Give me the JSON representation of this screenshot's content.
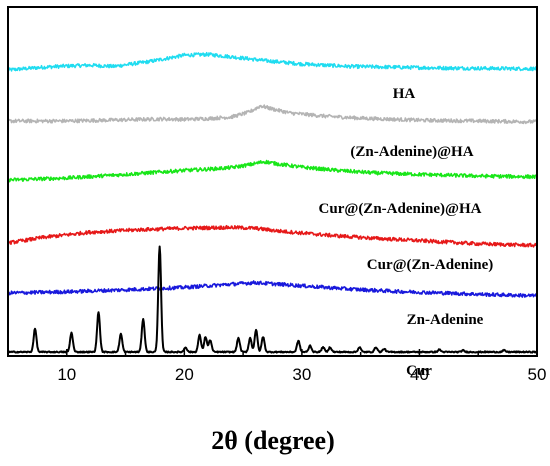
{
  "chart_data": {
    "type": "line",
    "xlabel": "2θ (degree)",
    "ylabel": "",
    "xlim": [
      5,
      50
    ],
    "x_ticks": [
      10,
      20,
      30,
      40,
      50
    ],
    "y_ticks_shown": false,
    "grid": false,
    "legend": "none",
    "series": [
      {
        "name": "HA",
        "color": "#20dcf0",
        "offset": 5,
        "points": [
          [
            5,
            0.05
          ],
          [
            8,
            0.12
          ],
          [
            10,
            0.15
          ],
          [
            12,
            0.17
          ],
          [
            14,
            0.14
          ],
          [
            17,
            0.26
          ],
          [
            20,
            0.42
          ],
          [
            22,
            0.44
          ],
          [
            24,
            0.38
          ],
          [
            27,
            0.28
          ],
          [
            30,
            0.2
          ],
          [
            34,
            0.14
          ],
          [
            38,
            0.12
          ],
          [
            42,
            0.1
          ],
          [
            46,
            0.09
          ],
          [
            50,
            0.08
          ]
        ]
      },
      {
        "name": "(Zn-Adenine)@HA",
        "color": "#b4b4b4",
        "offset": 4,
        "points": [
          [
            5,
            0.0
          ],
          [
            10,
            0.0
          ],
          [
            15,
            0.03
          ],
          [
            18,
            0.05
          ],
          [
            20,
            0.04
          ],
          [
            22,
            0.06
          ],
          [
            24,
            0.1
          ],
          [
            25.5,
            0.22
          ],
          [
            26.5,
            0.38
          ],
          [
            27.5,
            0.3
          ],
          [
            29,
            0.2
          ],
          [
            32,
            0.12
          ],
          [
            35,
            0.07
          ],
          [
            38,
            0.04
          ],
          [
            40,
            0.02
          ],
          [
            45,
            0.0
          ],
          [
            50,
            -0.02
          ]
        ]
      },
      {
        "name": "Cur@(Zn-Adenine)@HA",
        "color": "#19e619",
        "offset": 3,
        "points": [
          [
            5,
            0.0
          ],
          [
            10,
            0.05
          ],
          [
            15,
            0.14
          ],
          [
            20,
            0.24
          ],
          [
            22,
            0.27
          ],
          [
            24,
            0.31
          ],
          [
            25.5,
            0.38
          ],
          [
            26.8,
            0.46
          ],
          [
            28,
            0.4
          ],
          [
            30,
            0.32
          ],
          [
            33,
            0.24
          ],
          [
            36,
            0.18
          ],
          [
            40,
            0.14
          ],
          [
            45,
            0.1
          ],
          [
            50,
            0.08
          ]
        ]
      },
      {
        "name": "Cur@(Zn-Adenine)",
        "color": "#e61919",
        "offset": 2,
        "points": [
          [
            5,
            0.0
          ],
          [
            8,
            0.14
          ],
          [
            12,
            0.27
          ],
          [
            16,
            0.33
          ],
          [
            20,
            0.37
          ],
          [
            24,
            0.39
          ],
          [
            26,
            0.37
          ],
          [
            28,
            0.3
          ],
          [
            32,
            0.2
          ],
          [
            36,
            0.12
          ],
          [
            40,
            0.06
          ],
          [
            45,
            -0.02
          ],
          [
            50,
            -0.06
          ]
        ]
      },
      {
        "name": "Zn-Adenine",
        "color": "#1919dc",
        "offset": 1,
        "points": [
          [
            5,
            0.0
          ],
          [
            10,
            0.03
          ],
          [
            15,
            0.08
          ],
          [
            20,
            0.14
          ],
          [
            23,
            0.2
          ],
          [
            26,
            0.26
          ],
          [
            28,
            0.22
          ],
          [
            30,
            0.18
          ],
          [
            34,
            0.1
          ],
          [
            38,
            0.04
          ],
          [
            42,
            0.0
          ],
          [
            46,
            -0.04
          ],
          [
            50,
            -0.07
          ]
        ]
      },
      {
        "name": "Cur",
        "color": "#000000",
        "offset": 0,
        "points": [
          [
            5,
            0.0
          ],
          [
            50,
            0.0
          ]
        ],
        "peaks": [
          [
            7.3,
            0.58
          ],
          [
            10.4,
            0.48
          ],
          [
            12.7,
            1.0
          ],
          [
            14.6,
            0.45
          ],
          [
            16.5,
            0.83
          ],
          [
            17.9,
            2.65
          ],
          [
            20.1,
            0.12
          ],
          [
            21.3,
            0.42
          ],
          [
            21.8,
            0.38
          ],
          [
            22.2,
            0.3
          ],
          [
            24.6,
            0.35
          ],
          [
            25.6,
            0.35
          ],
          [
            26.1,
            0.55
          ],
          [
            26.7,
            0.38
          ],
          [
            29.7,
            0.28
          ],
          [
            30.7,
            0.16
          ],
          [
            31.8,
            0.12
          ],
          [
            32.4,
            0.12
          ],
          [
            34.9,
            0.12
          ],
          [
            36.3,
            0.12
          ],
          [
            37.0,
            0.08
          ],
          [
            41.7,
            0.06
          ],
          [
            43.7,
            0.04
          ],
          [
            47.2,
            0.04
          ]
        ]
      }
    ]
  }
}
